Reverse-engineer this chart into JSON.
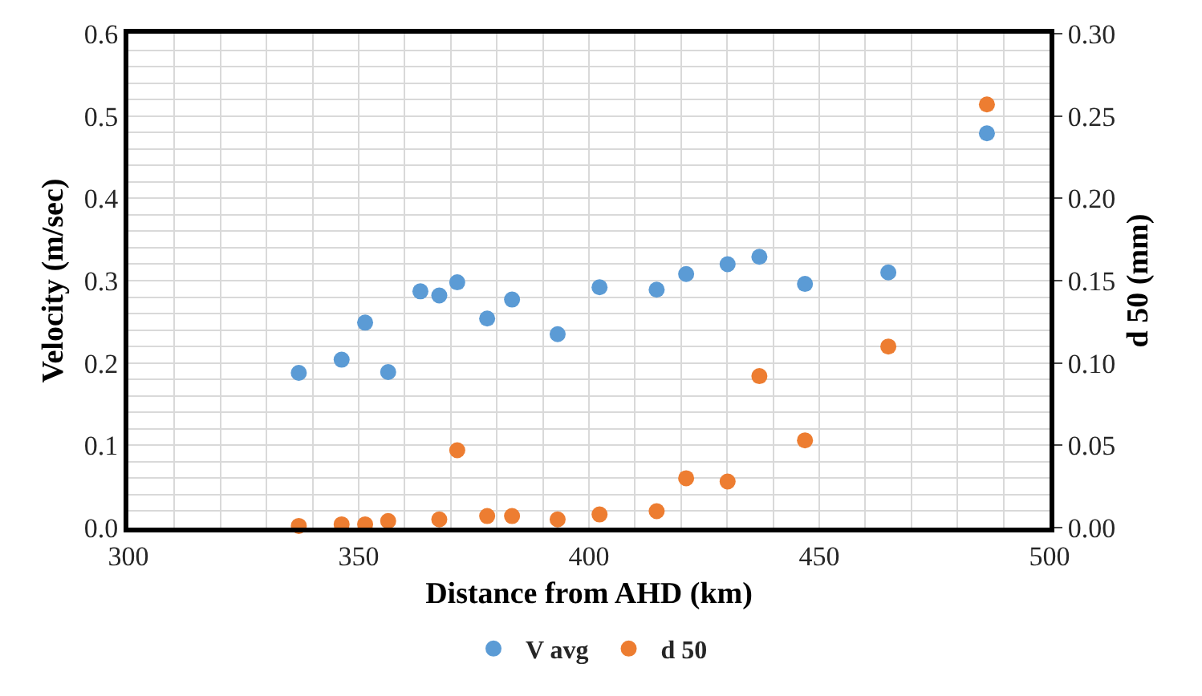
{
  "chart_data": {
    "type": "scatter",
    "xlabel": "Distance from AHD (km)",
    "ylabel": "Velocity (m/sec)",
    "y2label": "d 50 (mm)",
    "xlim": [
      300,
      500
    ],
    "xticks": [
      300,
      350,
      400,
      450,
      500
    ],
    "ylim": [
      0,
      0.6
    ],
    "yticks": [
      {
        "value": 0,
        "label": "0.0"
      },
      0.1,
      0.2,
      0.3,
      0.4,
      0.5,
      0.6
    ],
    "y2lim": [
      0,
      0.3
    ],
    "y2ticks": [
      {
        "value": 0,
        "label": "0.00"
      },
      {
        "value": 0.05,
        "label": "0.05"
      },
      {
        "value": 0.1,
        "label": "0.10"
      },
      {
        "value": 0.15,
        "label": "0.15"
      },
      {
        "value": 0.2,
        "label": "0.20"
      },
      {
        "value": 0.25,
        "label": "0.25"
      },
      {
        "value": 0.3,
        "label": "0.30"
      }
    ],
    "grid": true,
    "legend": "bottom",
    "marker": "circle",
    "series": [
      {
        "name": "V avg",
        "color": "#5b9bd5",
        "x": [
          337,
          346.3,
          351.4,
          356.4,
          363.4,
          367.5,
          371.4,
          377.9,
          383.3,
          393.2,
          402.3,
          414.7,
          421.1,
          430.1,
          437.0,
          446.9,
          465.0,
          486.4
        ],
        "values": [
          0.188,
          0.204,
          0.249,
          0.189,
          0.287,
          0.282,
          0.298,
          0.254,
          0.277,
          0.235,
          0.292,
          0.289,
          0.308,
          0.32,
          0.329,
          0.296,
          0.31,
          0.479
        ]
      },
      {
        "name": "d 50",
        "color": "#ed7d31",
        "axis": "y2",
        "x": [
          337,
          346.3,
          351.4,
          356.4,
          367.5,
          371.4,
          377.9,
          383.3,
          393.2,
          402.3,
          414.7,
          421.1,
          430.1,
          437.0,
          446.9,
          465.0,
          486.4
        ],
        "values": [
          0.001,
          0.002,
          0.002,
          0.004,
          0.005,
          0.047,
          0.007,
          0.007,
          0.005,
          0.008,
          0.01,
          0.03,
          0.028,
          0.092,
          0.053,
          0.11,
          0.257
        ]
      }
    ]
  }
}
